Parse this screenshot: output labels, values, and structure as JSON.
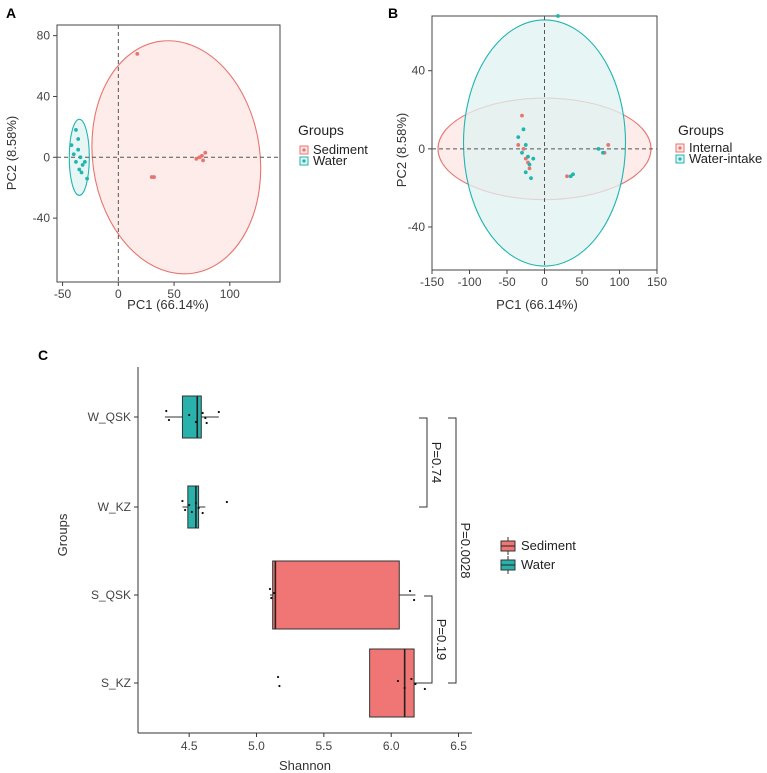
{
  "colors": {
    "red": "#e8746f",
    "red_fill": "#fde6e4",
    "teal": "#1fb5b0",
    "teal_fill": "#dff3f2",
    "box_red": "#ef7674",
    "box_teal": "#29b1ab",
    "overlap_fill": "#e8e3df"
  },
  "chart_data": [
    {
      "panel": "A",
      "type": "scatter",
      "xlabel": "PC1 (66.14%)",
      "ylabel": "PC2 (8.58%)",
      "xlim": [
        -55,
        145
      ],
      "ylim": [
        -82,
        87
      ],
      "xticks": [
        -50,
        0,
        50,
        100
      ],
      "yticks": [
        -40,
        0,
        40,
        80
      ],
      "legend_title": "Groups",
      "series": [
        {
          "name": "Sediment",
          "color": "red",
          "points": [
            [
              17,
              68
            ],
            [
              30,
              -13
            ],
            [
              32,
              -13
            ],
            [
              70,
              -1
            ],
            [
              73,
              0
            ],
            [
              75,
              1
            ],
            [
              78,
              3
            ],
            [
              76,
              -2
            ]
          ],
          "ellipse": {
            "cx": 52,
            "cy": 0,
            "rx": 75,
            "ry": 77,
            "angle_deg": 8
          }
        },
        {
          "name": "Water",
          "color": "teal",
          "points": [
            [
              -38,
              18
            ],
            [
              -42,
              8
            ],
            [
              -36,
              5
            ],
            [
              -40,
              2
            ],
            [
              -34,
              0
            ],
            [
              -38,
              -3
            ],
            [
              -32,
              -5
            ],
            [
              -35,
              -8
            ],
            [
              -33,
              -10
            ],
            [
              -30,
              -3
            ],
            [
              -28,
              -14
            ],
            [
              -36,
              12
            ]
          ],
          "ellipse": {
            "cx": -35,
            "cy": 0,
            "rx": 9,
            "ry": 25,
            "angle_deg": 0
          }
        }
      ]
    },
    {
      "panel": "B",
      "type": "scatter",
      "xlabel": "PC1 (66.14%)",
      "ylabel": "PC2 (8.58%)",
      "xlim": [
        -150,
        150
      ],
      "ylim": [
        -62,
        68
      ],
      "xticks": [
        -150,
        -100,
        -50,
        0,
        50,
        100,
        150
      ],
      "yticks": [
        -40,
        0,
        40
      ],
      "legend_title": "Groups",
      "series": [
        {
          "name": "Internal",
          "color": "red",
          "points": [
            [
              -30,
              17
            ],
            [
              -35,
              2
            ],
            [
              -28,
              0
            ],
            [
              -25,
              -5
            ],
            [
              -22,
              -7
            ],
            [
              -20,
              -10
            ],
            [
              80,
              -2
            ],
            [
              85,
              2
            ],
            [
              30,
              -14
            ]
          ],
          "ellipse": {
            "cx": 0,
            "cy": 0,
            "rx": 142,
            "ry": 26,
            "angle_deg": 0
          }
        },
        {
          "name": "Water-intake",
          "color": "teal",
          "points": [
            [
              -28,
              10
            ],
            [
              -35,
              6
            ],
            [
              -25,
              2
            ],
            [
              -30,
              -2
            ],
            [
              -22,
              -4
            ],
            [
              -15,
              -5
            ],
            [
              -20,
              -8
            ],
            [
              -25,
              -12
            ],
            [
              -18,
              -15
            ],
            [
              18,
              68
            ],
            [
              35,
              -14
            ],
            [
              38,
              -13
            ],
            [
              72,
              0
            ],
            [
              78,
              -2
            ]
          ],
          "ellipse": {
            "cx": 0,
            "cy": 3,
            "rx": 108,
            "ry": 63,
            "angle_deg": 0
          }
        }
      ]
    },
    {
      "panel": "C",
      "type": "box",
      "xlabel": "Shannon",
      "ylabel": "Groups",
      "xlim": [
        4.12,
        6.6
      ],
      "xticks": [
        4.5,
        5.0,
        5.5,
        6.0,
        6.5
      ],
      "categories": [
        "W_QSK",
        "W_KZ",
        "S_QSK",
        "S_KZ"
      ],
      "legend_entries": [
        "Sediment",
        "Water"
      ],
      "boxes": [
        {
          "category": "W_QSK",
          "group": "Water",
          "min": 4.32,
          "q1": 4.45,
          "median": 4.56,
          "q3": 4.59,
          "max": 4.72,
          "points": [
            4.33,
            4.35,
            4.5,
            4.55,
            4.6,
            4.62,
            4.63,
            4.72
          ]
        },
        {
          "category": "W_KZ",
          "group": "Water",
          "min": 4.45,
          "q1": 4.49,
          "median": 4.55,
          "q3": 4.57,
          "max": 4.62,
          "points": [
            4.45,
            4.47,
            4.5,
            4.52,
            4.55,
            4.57,
            4.6,
            4.78
          ]
        },
        {
          "category": "S_QSK",
          "group": "Sediment",
          "min": 5.1,
          "q1": 5.12,
          "median": 5.14,
          "q3": 6.06,
          "max": 6.18,
          "points": [
            5.1,
            5.11,
            5.13,
            6.17,
            6.14
          ]
        },
        {
          "category": "S_KZ",
          "group": "Sediment",
          "min": 5.84,
          "q1": 5.84,
          "median": 6.1,
          "q3": 6.17,
          "max": 6.26,
          "points": [
            5.16,
            5.17,
            6.05,
            6.1,
            6.15,
            6.18,
            6.25
          ]
        }
      ],
      "brackets": [
        {
          "from": "W_QSK",
          "to": "W_KZ",
          "label": "P=0.74"
        },
        {
          "from": "W_QSK",
          "to": "S_KZ",
          "label": "P=0.0028"
        },
        {
          "from": "S_QSK",
          "to": "S_KZ",
          "label": "P=0.19"
        }
      ]
    }
  ]
}
